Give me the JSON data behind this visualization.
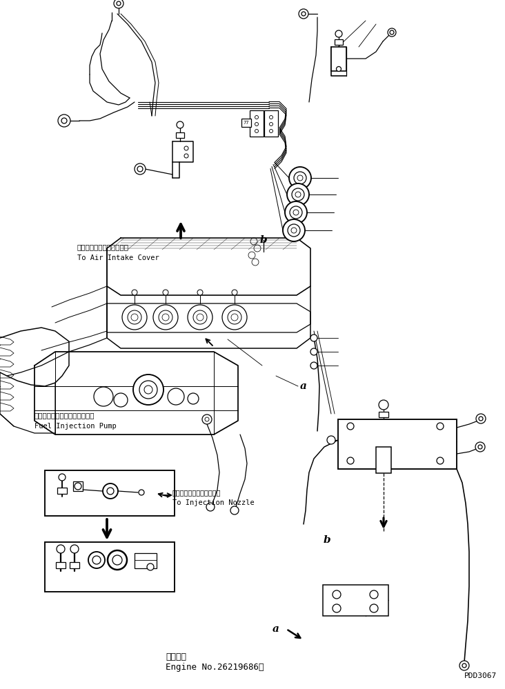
{
  "bg_color": "#ffffff",
  "lc": "#000000",
  "lw": 0.9,
  "label_air_jp": "エアーインテークカバーへ",
  "label_air_en": "To Air Intake Cover",
  "label_pump_jp": "フェルインジェクションポンプ",
  "label_pump_en": "Fuel Injection Pump",
  "label_nozzle_jp": "インジェクションノズルへ",
  "label_nozzle_en": "To Injection Nozzle",
  "label_b": "b",
  "label_a": "a",
  "bottom1": "適用号機",
  "bottom2": "Engine No.26219686～",
  "bottom_right": "PDD3067",
  "num77": "77"
}
